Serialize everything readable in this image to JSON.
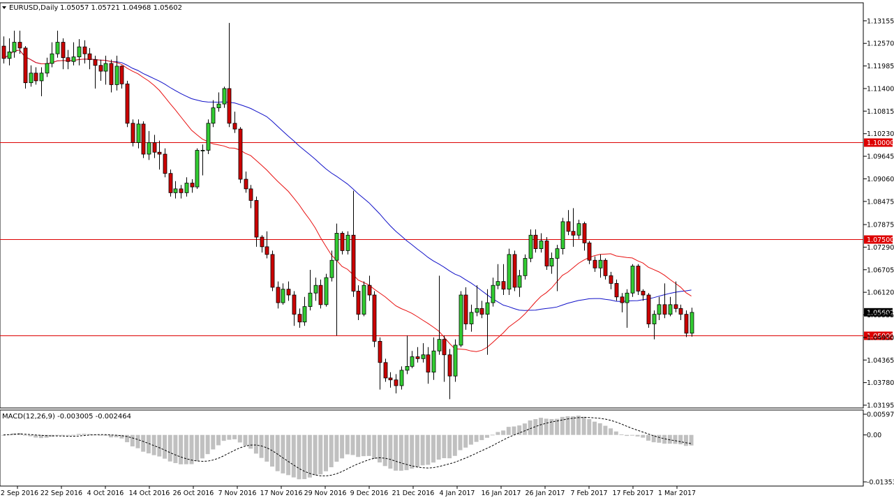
{
  "header": {
    "symbol": "EURUSD,Daily",
    "ohlc": "1.05057 1.05721 1.04968 1.05602"
  },
  "macd": {
    "label": "MACD(12,26,9) -0.003005 -0.002464",
    "axis_labels": [
      "0.005971",
      "0.00",
      "-0.013539"
    ],
    "ylim": [
      -0.013539,
      0.005971
    ]
  },
  "colors": {
    "bull": "#32cd32",
    "bear": "#cc0000",
    "ma_fast": "#e81010",
    "ma_slow": "#1010c8",
    "levels": "#dd0000",
    "hist": "#c0c0c0",
    "signal": "#000000"
  },
  "chart_data": {
    "type": "candlestick",
    "title": "EURUSD,Daily",
    "ylim": [
      1.03195,
      1.13315
    ],
    "y_ticks": [
      "1.13155",
      "1.12570",
      "1.11985",
      "1.11400",
      "1.10815",
      "1.10230",
      "1.09645",
      "1.09060",
      "1.08475",
      "1.07875",
      "1.07290",
      "1.06705",
      "1.06120",
      "1.05535",
      "1.04950",
      "1.04365",
      "1.03780",
      "1.03195"
    ],
    "x_ticks": [
      "12 Sep 2016",
      "22 Sep 2016",
      "4 Oct 2016",
      "14 Oct 2016",
      "26 Oct 2016",
      "7 Nov 2016",
      "17 Nov 2016",
      "29 Nov 2016",
      "9 Dec 2016",
      "21 Dec 2016",
      "4 Jan 2017",
      "16 Jan 2017",
      "26 Jan 2017",
      "7 Feb 2017",
      "17 Feb 2017",
      "1 Mar 2017"
    ],
    "levels": [
      {
        "value": 1.1,
        "label": "1.10000"
      },
      {
        "value": 1.075,
        "label": "1.07500"
      },
      {
        "value": 1.05,
        "label": "1.05000"
      }
    ],
    "current_price": {
      "value": 1.05602,
      "label": "1.05602"
    },
    "candles": [
      [
        1.125,
        1.1218,
        1.1275,
        1.1205
      ],
      [
        1.1218,
        1.1235,
        1.127,
        1.12
      ],
      [
        1.1235,
        1.126,
        1.129,
        1.122
      ],
      [
        1.126,
        1.1245,
        1.129,
        1.123
      ],
      [
        1.1245,
        1.1155,
        1.125,
        1.114
      ],
      [
        1.1155,
        1.118,
        1.12,
        1.1145
      ],
      [
        1.118,
        1.116,
        1.1195,
        1.115
      ],
      [
        1.116,
        1.118,
        1.1195,
        1.112
      ],
      [
        1.118,
        1.1205,
        1.122,
        1.117
      ],
      [
        1.1205,
        1.123,
        1.126,
        1.1195
      ],
      [
        1.123,
        1.126,
        1.129,
        1.122
      ],
      [
        1.126,
        1.122,
        1.127,
        1.119
      ],
      [
        1.122,
        1.121,
        1.124,
        1.119
      ],
      [
        1.121,
        1.1222,
        1.126,
        1.12
      ],
      [
        1.1222,
        1.1248,
        1.1268,
        1.12
      ],
      [
        1.1248,
        1.123,
        1.1265,
        1.1205
      ],
      [
        1.123,
        1.1215,
        1.1245,
        1.119
      ],
      [
        1.1215,
        1.12,
        1.1225,
        1.114
      ],
      [
        1.12,
        1.1185,
        1.1215,
        1.116
      ],
      [
        1.1185,
        1.1205,
        1.1225,
        1.115
      ],
      [
        1.1205,
        1.115,
        1.1215,
        1.113
      ],
      [
        1.115,
        1.1198,
        1.1225,
        1.1135
      ],
      [
        1.1198,
        1.1152,
        1.12,
        1.114
      ],
      [
        1.1152,
        1.105,
        1.116,
        1.104
      ],
      [
        1.105,
        1.1,
        1.106,
        1.099
      ],
      [
        1.1,
        1.1048,
        1.106,
        1.0985
      ],
      [
        1.1048,
        1.097,
        1.1055,
        1.096
      ],
      [
        1.097,
        1.1,
        1.103,
        1.0955
      ],
      [
        1.1,
        1.0975,
        1.102,
        1.096
      ],
      [
        1.0975,
        1.097,
        1.1005,
        1.093
      ],
      [
        1.097,
        1.092,
        1.0985,
        1.091
      ],
      [
        1.092,
        1.087,
        1.093,
        1.086
      ],
      [
        1.087,
        1.088,
        1.09,
        1.0855
      ],
      [
        1.088,
        1.087,
        1.089,
        1.0855
      ],
      [
        1.087,
        1.0895,
        1.091,
        1.086
      ],
      [
        1.0895,
        1.0885,
        1.0905,
        1.087
      ],
      [
        1.0885,
        1.098,
        1.0985,
        1.088
      ],
      [
        1.098,
        1.098,
        1.0995,
        1.0915
      ],
      [
        1.098,
        1.105,
        1.106,
        1.097
      ],
      [
        1.105,
        1.109,
        1.111,
        1.104
      ],
      [
        1.109,
        1.11,
        1.113,
        1.108
      ],
      [
        1.11,
        1.114,
        1.1145,
        1.109
      ],
      [
        1.114,
        1.105,
        1.131,
        1.104
      ],
      [
        1.105,
        1.1035,
        1.108,
        1.1025
      ],
      [
        1.1035,
        1.0905,
        1.104,
        1.0895
      ],
      [
        1.0905,
        1.088,
        1.0925,
        1.087
      ],
      [
        1.088,
        1.085,
        1.089,
        1.083
      ],
      [
        1.085,
        1.0755,
        1.086,
        1.073
      ],
      [
        1.0755,
        1.073,
        1.076,
        1.0715
      ],
      [
        1.073,
        1.071,
        1.077,
        1.07
      ],
      [
        1.071,
        1.0625,
        1.072,
        1.0615
      ],
      [
        1.0625,
        1.0585,
        1.064,
        1.057
      ],
      [
        1.0585,
        1.062,
        1.0635,
        1.058
      ],
      [
        1.062,
        1.0605,
        1.064,
        1.059
      ],
      [
        1.0605,
        1.0555,
        1.0615,
        1.0525
      ],
      [
        1.0555,
        1.0535,
        1.057,
        1.052
      ],
      [
        1.0535,
        1.0575,
        1.06,
        1.0525
      ],
      [
        1.0575,
        1.061,
        1.067,
        1.0565
      ],
      [
        1.061,
        1.063,
        1.065,
        1.059
      ],
      [
        1.063,
        1.058,
        1.0645,
        1.057
      ],
      [
        1.058,
        1.065,
        1.066,
        1.0575
      ],
      [
        1.065,
        1.0695,
        1.072,
        1.064
      ],
      [
        1.0695,
        1.0765,
        1.079,
        1.05
      ],
      [
        1.0765,
        1.072,
        1.077,
        1.071
      ],
      [
        1.072,
        1.076,
        1.077,
        1.071
      ],
      [
        1.076,
        1.0615,
        1.0875,
        1.06
      ],
      [
        1.0615,
        1.0555,
        1.063,
        1.054
      ],
      [
        1.0555,
        1.063,
        1.064,
        1.055
      ],
      [
        1.063,
        1.0605,
        1.0655,
        1.059
      ],
      [
        1.0605,
        1.0485,
        1.0615,
        1.047
      ],
      [
        1.0485,
        1.043,
        1.0495,
        1.036
      ],
      [
        1.043,
        1.039,
        1.044,
        1.038
      ],
      [
        1.039,
        1.0385,
        1.0405,
        1.0365
      ],
      [
        1.0385,
        1.037,
        1.04,
        1.035
      ],
      [
        1.037,
        1.041,
        1.042,
        1.036
      ],
      [
        1.041,
        1.042,
        1.05,
        1.04
      ],
      [
        1.042,
        1.0445,
        1.046,
        1.0415
      ],
      [
        1.0445,
        1.044,
        1.047,
        1.043
      ],
      [
        1.044,
        1.045,
        1.048,
        1.043
      ],
      [
        1.045,
        1.0405,
        1.047,
        1.0375
      ],
      [
        1.0405,
        1.046,
        1.0495,
        1.0385
      ],
      [
        1.046,
        1.049,
        1.0655,
        1.045
      ],
      [
        1.049,
        1.045,
        1.05,
        1.038
      ],
      [
        1.045,
        1.0395,
        1.0465,
        1.0335
      ],
      [
        1.0395,
        1.0475,
        1.049,
        1.038
      ],
      [
        1.0475,
        1.0605,
        1.0615,
        1.047
      ],
      [
        1.0605,
        1.053,
        1.0625,
        1.0515
      ],
      [
        1.053,
        1.056,
        1.058,
        1.051
      ],
      [
        1.056,
        1.057,
        1.063,
        1.055
      ],
      [
        1.057,
        1.0555,
        1.059,
        1.0545
      ],
      [
        1.0555,
        1.0585,
        1.062,
        1.045
      ],
      [
        1.0585,
        1.063,
        1.065,
        1.0575
      ],
      [
        1.063,
        1.064,
        1.0685,
        1.062
      ],
      [
        1.064,
        1.062,
        1.0685,
        1.0605
      ],
      [
        1.062,
        1.071,
        1.0725,
        1.0605
      ],
      [
        1.071,
        1.0625,
        1.072,
        1.0615
      ],
      [
        1.0625,
        1.0655,
        1.067,
        1.06
      ],
      [
        1.0655,
        1.07,
        1.071,
        1.0645
      ],
      [
        1.07,
        1.076,
        1.0775,
        1.069
      ],
      [
        1.076,
        1.0725,
        1.0775,
        1.0715
      ],
      [
        1.0725,
        1.0745,
        1.0765,
        1.0715
      ],
      [
        1.0745,
        1.068,
        1.0755,
        1.067
      ],
      [
        1.068,
        1.07,
        1.0715,
        1.066
      ],
      [
        1.07,
        1.0725,
        1.0735,
        1.0615
      ],
      [
        1.0725,
        1.0795,
        1.0805,
        1.071
      ],
      [
        1.0795,
        1.077,
        1.0825,
        1.076
      ],
      [
        1.077,
        1.076,
        1.083,
        1.073
      ],
      [
        1.076,
        1.079,
        1.08,
        1.075
      ],
      [
        1.079,
        1.074,
        1.0795,
        1.072
      ],
      [
        1.074,
        1.0695,
        1.0745,
        1.0685
      ],
      [
        1.0695,
        1.0675,
        1.0705,
        1.0665
      ],
      [
        1.0675,
        1.0695,
        1.071,
        1.065
      ],
      [
        1.0695,
        1.0655,
        1.07,
        1.0645
      ],
      [
        1.0655,
        1.0635,
        1.0665,
        1.062
      ],
      [
        1.0635,
        1.06,
        1.0645,
        1.059
      ],
      [
        1.06,
        1.0585,
        1.061,
        1.056
      ],
      [
        1.0585,
        1.061,
        1.062,
        1.052
      ],
      [
        1.061,
        1.068,
        1.0685,
        1.06
      ],
      [
        1.068,
        1.0615,
        1.0685,
        1.0605
      ],
      [
        1.0615,
        1.0605,
        1.062,
        1.059
      ],
      [
        1.0605,
        1.053,
        1.061,
        1.052
      ],
      [
        1.053,
        1.0555,
        1.0565,
        1.049
      ],
      [
        1.0555,
        1.058,
        1.06,
        1.054
      ],
      [
        1.058,
        1.0555,
        1.0635,
        1.0545
      ],
      [
        1.0555,
        1.058,
        1.06,
        1.055
      ],
      [
        1.058,
        1.057,
        1.064,
        1.056
      ],
      [
        1.057,
        1.0555,
        1.058,
        1.054
      ],
      [
        1.0555,
        1.0506,
        1.0565,
        1.0496
      ],
      [
        1.0506,
        1.056,
        1.0572,
        1.0497
      ]
    ]
  }
}
